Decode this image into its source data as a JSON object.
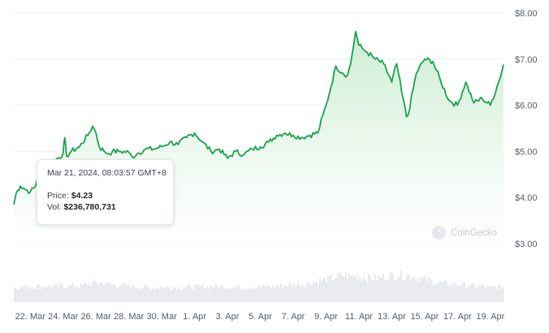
{
  "chart_data": {
    "type": "area",
    "y_axis": {
      "ticks": [
        "$8.00",
        "$7.00",
        "$6.00",
        "$5.00",
        "$4.00",
        "$3.00"
      ],
      "values": [
        8,
        7,
        6,
        5,
        4,
        3
      ],
      "range": [
        3,
        8
      ]
    },
    "x_axis": {
      "ticks": [
        "22. Mar",
        "24. Mar",
        "26. Mar",
        "28. Mar",
        "30. Mar",
        "1. Apr",
        "3. Apr",
        "5. Apr",
        "7. Apr",
        "9. Apr",
        "11. Apr",
        "13. Apr",
        "15. Apr",
        "17. Apr",
        "19. Apr"
      ],
      "tick_days": [
        1,
        3,
        5,
        7,
        9,
        11,
        13,
        15,
        17,
        19,
        21,
        23,
        25,
        27,
        29
      ]
    },
    "series": [
      {
        "x_days": [
          0,
          0.15,
          0.4,
          0.6,
          1.0,
          1.3,
          1.5,
          2.0,
          2.5,
          3.0,
          3.1,
          3.2,
          3.5,
          4.0,
          4.5,
          4.8,
          5.0,
          5.2,
          5.5,
          5.8,
          6.0,
          6.5,
          7.0,
          7.2,
          7.5,
          8.0,
          8.5,
          9.0,
          9.5,
          10.0,
          10.5,
          11.0,
          11.5,
          12.0,
          12.5,
          13.0,
          13.5,
          14.0,
          14.5,
          15.0,
          15.5,
          16.0,
          16.5,
          17.0,
          17.5,
          18.0,
          18.5,
          19.0,
          19.3,
          19.6,
          20.0,
          20.3,
          20.5,
          20.8,
          21.0,
          21.3,
          21.5,
          22.0,
          22.5,
          23.0,
          23.3,
          23.6,
          23.9,
          24.0,
          24.5,
          25.0,
          25.5,
          26.0,
          26.5,
          27.0,
          27.5,
          28.0,
          28.5,
          29.0,
          29.5,
          29.8
        ],
        "y": [
          3.85,
          4.1,
          4.25,
          4.2,
          4.12,
          4.23,
          4.5,
          4.7,
          4.8,
          4.95,
          5.3,
          4.9,
          5.0,
          5.1,
          5.35,
          5.55,
          5.4,
          5.1,
          5.0,
          4.95,
          5.0,
          5.0,
          4.98,
          4.88,
          4.95,
          5.05,
          5.05,
          5.1,
          5.2,
          5.15,
          5.3,
          5.4,
          5.2,
          5.0,
          5.05,
          4.85,
          5.0,
          4.93,
          5.05,
          5.1,
          5.2,
          5.35,
          5.4,
          5.35,
          5.3,
          5.35,
          5.4,
          6.0,
          6.4,
          6.85,
          6.7,
          6.65,
          6.9,
          7.6,
          7.3,
          7.2,
          7.15,
          7.0,
          6.9,
          6.5,
          6.9,
          6.3,
          5.75,
          5.8,
          6.7,
          7.0,
          6.95,
          6.5,
          6.1,
          6.0,
          6.5,
          6.05,
          6.15,
          6.0,
          6.5,
          6.88
        ]
      }
    ],
    "volume_series": [
      {
        "x_days": [
          0,
          2,
          4,
          5,
          6,
          8,
          10,
          12,
          14,
          16,
          18,
          19,
          20,
          21,
          22,
          23,
          24,
          25,
          26,
          27,
          28,
          29,
          29.8
        ],
        "values": [
          0.55,
          0.6,
          0.6,
          0.75,
          0.65,
          0.55,
          0.55,
          0.6,
          0.55,
          0.6,
          0.7,
          0.85,
          1.0,
          0.95,
          0.9,
          1.0,
          1.0,
          0.85,
          0.7,
          0.65,
          0.6,
          0.55,
          0.6
        ]
      }
    ],
    "tooltip": {
      "date": "Mar 21, 2024, 08:03:57 GMT+8",
      "price_label": "Price:",
      "price": "$4.23",
      "vol_label": "Vol:",
      "vol": "$236,780,731"
    },
    "watermark": "CoinGecko",
    "colors": {
      "line": "#17a34a",
      "area_top": "#c9eccf",
      "area_bottom": "#ffffff",
      "grid": "#eef0f2",
      "volume": "#e4e6ea",
      "tick": "#555b66"
    },
    "grid": true
  }
}
